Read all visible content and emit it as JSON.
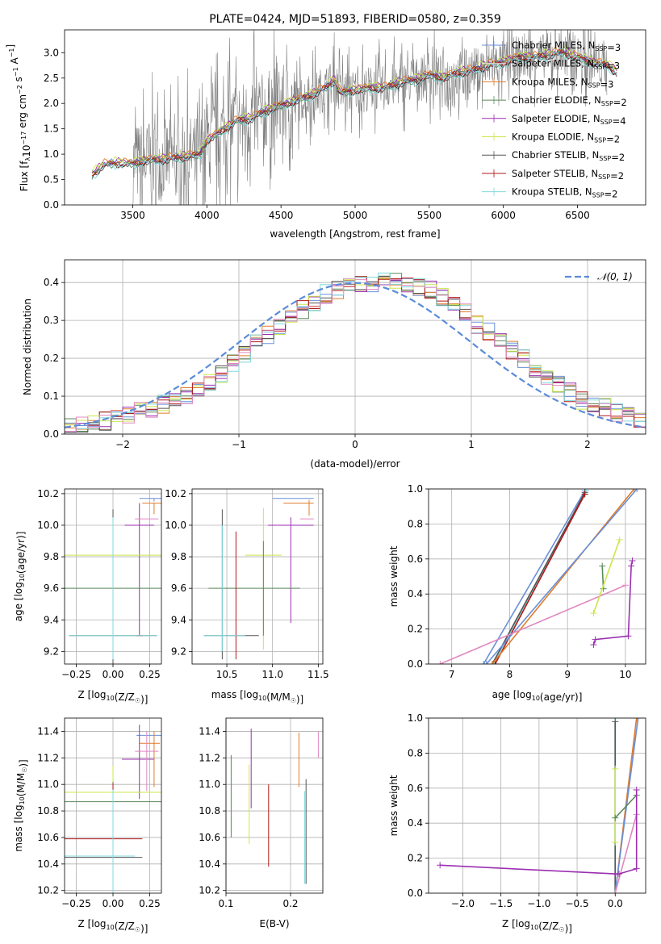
{
  "colors": {
    "Chabrier MILES": "#6a8fd8",
    "Salpeter MILES": "#e8e8e8",
    "Kroupa MILES": "#e07c2a",
    "Chabrier ELODIE": "#5b8a5b",
    "Salpeter ELODIE": "#9b2fb0",
    "Kroupa ELODIE": "#c9e84a",
    "Chabrier STELIB": "#555555",
    "Salpeter STELIB": "#b01818",
    "Kroupa STELIB": "#80d8dc",
    "pink": "#e089c0",
    "gauss": "#5b8bd8",
    "data": "#808080"
  },
  "chart_data": [
    {
      "id": "spectrum",
      "type": "line",
      "title": "PLATE=0424, MJD=51893, FIBERID=0580, z=0.359",
      "xlabel": "wavelength [Angstrom, rest frame]",
      "ylabel": "Flux [f",
      "ylabel_sub": "λ",
      "ylabel_rest": "10",
      "ylabel_exp": "−17",
      "ylabel_tail": " erg cm",
      "ylabel_tail_exp": "−2",
      "ylabel_s": " s",
      "ylabel_s_exp": "−1",
      "ylabel_a": " A",
      "ylabel_a_exp": "−1",
      "ylabel_end": "]",
      "xlim": [
        3040,
        6960
      ],
      "ylim": [
        0,
        3.45
      ],
      "xticks": [
        "3500",
        "4000",
        "4500",
        "5000",
        "5500",
        "6000",
        "6500"
      ],
      "xtick_values": [
        3500,
        4000,
        4500,
        5000,
        5500,
        6000,
        6500
      ],
      "yticks": [
        "0.0",
        "0.5",
        "1.0",
        "1.5",
        "2.0",
        "2.5",
        "3.0"
      ],
      "ytick_values": [
        0,
        0.5,
        1,
        1.5,
        2,
        2.5,
        3
      ],
      "model_x": [
        3225,
        3300,
        3400,
        3500,
        3550,
        3650,
        3750,
        3850,
        3950,
        4000,
        4100,
        4200,
        4300,
        4400,
        4500,
        4600,
        4700,
        4800,
        4860,
        4900,
        5000,
        5100,
        5200,
        5300,
        5400,
        5500,
        5600,
        5700,
        5800,
        5900,
        6000,
        6100,
        6200,
        6300,
        6400,
        6500,
        6600,
        6700,
        6770
      ],
      "model_y": [
        0.58,
        0.78,
        0.82,
        0.8,
        0.85,
        0.88,
        0.9,
        0.95,
        0.98,
        1.25,
        1.45,
        1.65,
        1.7,
        1.85,
        1.95,
        2.05,
        2.15,
        2.3,
        2.45,
        2.2,
        2.25,
        2.3,
        2.3,
        2.4,
        2.45,
        2.55,
        2.5,
        2.6,
        2.65,
        2.75,
        2.8,
        2.9,
        2.9,
        2.95,
        3.0,
        2.9,
        2.8,
        2.75,
        2.6
      ],
      "data_x_range": [
        3500,
        6700
      ],
      "legend": [
        {
          "label": "Chabrier MILES",
          "sub": "SSP",
          "n": "3",
          "marker": "line"
        },
        {
          "label": "Salpeter MILES",
          "sub": "SSP",
          "n": "3",
          "marker": "line"
        },
        {
          "label": "Kroupa MILES",
          "sub": "SSP",
          "n": "3",
          "marker": "line"
        },
        {
          "label": "Chabrier ELODIE",
          "sub": "SSP",
          "n": "2",
          "marker": "line"
        },
        {
          "label": "Salpeter ELODIE",
          "sub": "SSP",
          "n": "4",
          "marker": "line"
        },
        {
          "label": "Kroupa ELODIE",
          "sub": "SSP",
          "n": "2",
          "marker": "line"
        },
        {
          "label": "Chabrier STELIB",
          "sub": "SSP",
          "n": "2",
          "marker": "line"
        },
        {
          "label": "Salpeter STELIB",
          "sub": "SSP",
          "n": "2",
          "marker": "line"
        },
        {
          "label": "Kroupa STELIB",
          "sub": "SSP",
          "n": "2",
          "marker": "line"
        }
      ],
      "legend_prefix": ", N",
      "grid": false,
      "legend_position": "top-right"
    },
    {
      "id": "hist",
      "type": "area",
      "xlabel": "(data-model)/error",
      "ylabel": "Normed distribution",
      "xlim": [
        -2.5,
        2.5
      ],
      "ylim": [
        0,
        0.46
      ],
      "xticks": [
        "−2",
        "−1",
        "0",
        "1",
        "2"
      ],
      "xtick_values": [
        -2,
        -1,
        0,
        1,
        2
      ],
      "yticks": [
        "0.0",
        "0.1",
        "0.2",
        "0.3",
        "0.4"
      ],
      "ytick_values": [
        0,
        0.1,
        0.2,
        0.3,
        0.4
      ],
      "legend": "𝒩(0, 1)",
      "bin_width": 0.1,
      "bin_start": -2.5,
      "base": [
        0.02,
        0.025,
        0.03,
        0.035,
        0.04,
        0.05,
        0.06,
        0.065,
        0.08,
        0.09,
        0.1,
        0.12,
        0.14,
        0.16,
        0.19,
        0.21,
        0.24,
        0.26,
        0.28,
        0.31,
        0.33,
        0.35,
        0.37,
        0.38,
        0.39,
        0.4,
        0.4,
        0.41,
        0.4,
        0.4,
        0.39,
        0.38,
        0.36,
        0.34,
        0.32,
        0.29,
        0.27,
        0.24,
        0.22,
        0.2,
        0.17,
        0.15,
        0.13,
        0.11,
        0.09,
        0.08,
        0.07,
        0.055,
        0.045,
        0.04
      ],
      "grid": true,
      "legend_position": "top-right"
    },
    {
      "id": "p3",
      "type": "scatter",
      "xlabel": "Z [log",
      "xlabel_sub": "10",
      "xlabel_rest": "(Z/Z",
      "xlabel_sun": "☉",
      "xlabel_end": ")]",
      "ylabel": "age  [log",
      "ylabel_sub": "10",
      "ylabel_rest": "(age/yr)]",
      "xlim": [
        -0.33,
        0.33
      ],
      "ylim": [
        9.12,
        10.23
      ],
      "xticks": [
        "−0.25",
        "0.00",
        "0.25"
      ],
      "xtick_values": [
        -0.25,
        0,
        0.25
      ],
      "yticks": [
        "9.2",
        "9.4",
        "9.6",
        "9.8",
        "10.0",
        "10.2"
      ],
      "ytick_values": [
        9.2,
        9.4,
        9.6,
        9.8,
        10,
        10.2
      ],
      "grid": true
    },
    {
      "id": "p4",
      "type": "scatter",
      "xlabel": "mass [log",
      "xlabel_sub": "10",
      "xlabel_rest": "(M/M",
      "xlabel_sun": "☉",
      "xlabel_end": ")]",
      "xlim": [
        10.12,
        11.55
      ],
      "ylim": [
        9.12,
        10.23
      ],
      "xticks": [
        "10.5",
        "11.0",
        "11.5"
      ],
      "xtick_values": [
        10.5,
        11,
        11.5
      ],
      "yticks": [
        "9.2",
        "9.4",
        "9.6",
        "9.8",
        "10.0",
        "10.2"
      ],
      "ytick_values": [
        9.2,
        9.4,
        9.6,
        9.8,
        10,
        10.2
      ],
      "grid": true
    },
    {
      "id": "p5",
      "type": "line",
      "xlabel": "age  [log",
      "xlabel_sub": "10",
      "xlabel_rest": "(age/yr)]",
      "ylabel": "mass weight",
      "xlim": [
        6.6,
        10.35
      ],
      "ylim": [
        0,
        1
      ],
      "xticks": [
        "7",
        "8",
        "9",
        "10"
      ],
      "xtick_values": [
        7,
        8,
        9,
        10
      ],
      "yticks": [
        "0.0",
        "0.2",
        "0.4",
        "0.6",
        "0.8",
        "1.0"
      ],
      "ytick_values": [
        0,
        0.2,
        0.4,
        0.6,
        0.8,
        1
      ],
      "grid": true
    },
    {
      "id": "p6",
      "type": "scatter",
      "xlabel": "Z [log",
      "xlabel_sub": "10",
      "xlabel_rest": "(Z/Z",
      "xlabel_sun": "☉",
      "xlabel_end": ")]",
      "ylabel": "mass [log",
      "ylabel_sub": "10",
      "ylabel_rest": "(M/M",
      "ylabel_sun": "☉",
      "ylabel_end": ")]",
      "xlim": [
        -0.33,
        0.33
      ],
      "ylim": [
        10.18,
        11.5
      ],
      "xticks": [
        "−0.25",
        "0.00",
        "0.25"
      ],
      "xtick_values": [
        -0.25,
        0,
        0.25
      ],
      "yticks": [
        "10.2",
        "10.4",
        "10.6",
        "10.8",
        "11.0",
        "11.2",
        "11.4"
      ],
      "ytick_values": [
        10.2,
        10.4,
        10.6,
        10.8,
        11,
        11.2,
        11.4
      ],
      "grid": true
    },
    {
      "id": "p7",
      "type": "scatter",
      "xlabel": "E(B-V)",
      "xlim": [
        0.1,
        0.25
      ],
      "ylim": [
        10.18,
        11.5
      ],
      "xticks": [
        "0.1",
        "0.2"
      ],
      "xtick_values": [
        0.1,
        0.2
      ],
      "yticks": [
        "10.2",
        "10.4",
        "10.6",
        "10.8",
        "11.0",
        "11.2",
        "11.4"
      ],
      "ytick_values": [
        10.2,
        10.4,
        10.6,
        10.8,
        11,
        11.2,
        11.4
      ],
      "grid": true
    },
    {
      "id": "p8",
      "type": "line",
      "xlabel": "Z [log",
      "xlabel_sub": "10",
      "xlabel_rest": "(Z/Z",
      "xlabel_sun": "☉",
      "xlabel_end": ")]",
      "ylabel": "mass weight",
      "xlim": [
        -2.45,
        0.4
      ],
      "ylim": [
        0,
        1
      ],
      "xticks": [
        "−2.0",
        "−1.5",
        "−1.0",
        "−0.5",
        "0.0"
      ],
      "xtick_values": [
        -2,
        -1.5,
        -1,
        -0.5,
        0
      ],
      "yticks": [
        "0.0",
        "0.2",
        "0.4",
        "0.6",
        "0.8",
        "1.0"
      ],
      "ytick_values": [
        0,
        0.2,
        0.4,
        0.6,
        0.8,
        1
      ],
      "grid": true
    }
  ]
}
